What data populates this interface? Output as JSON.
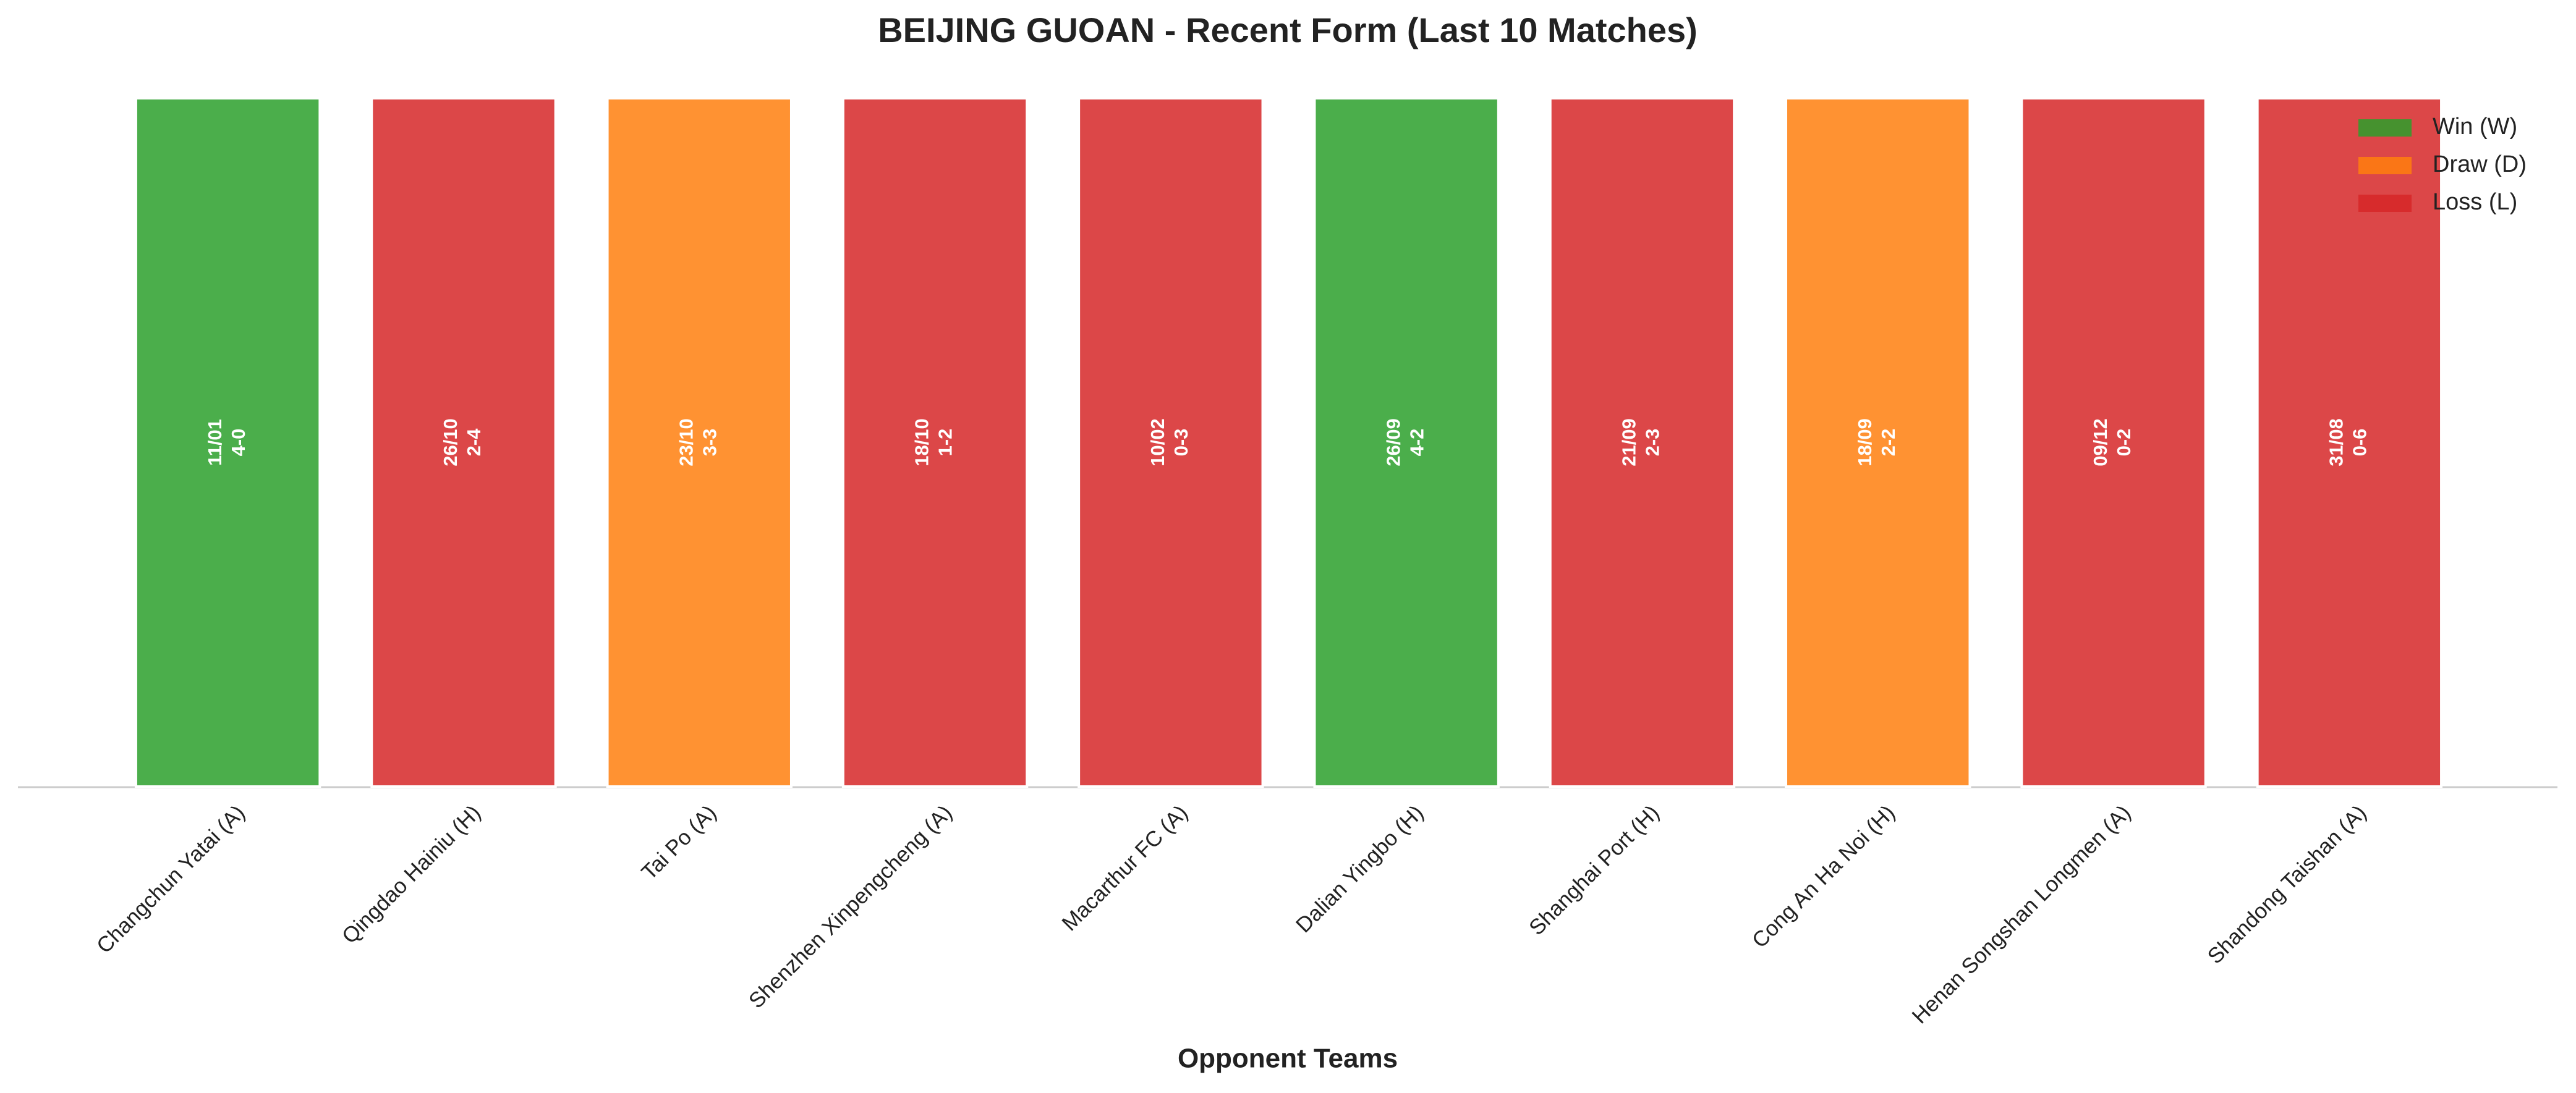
{
  "chart_data": {
    "type": "bar",
    "title": "BEIJING GUOAN - Recent Form (Last 10 Matches)",
    "x_label": "Opponent Teams",
    "categories": [
      "Changchun Yatai (A)",
      "Qingdao Hainiu (H)",
      "Tai Po (A)",
      "Shenzhen Xinpengcheng (A)",
      "Macarthur FC (A)",
      "Dalian Yingbo (H)",
      "Shanghai Port (H)",
      "Cong An Ha Noi (H)",
      "Henan Songshan Longmen (A)",
      "Shandong Taishan (A)"
    ],
    "dates": [
      "11/01",
      "26/10",
      "23/10",
      "18/10",
      "10/02",
      "26/09",
      "21/09",
      "18/09",
      "09/12",
      "31/08"
    ],
    "scores": [
      "4-0",
      "2-4",
      "3-3",
      "1-2",
      "0-3",
      "4-2",
      "2-3",
      "2-2",
      "0-2",
      "0-6"
    ],
    "series": [
      {
        "name": "Win (W)",
        "color": "#2ca02c",
        "values": [
          1,
          null,
          null,
          null,
          null,
          1,
          null,
          null,
          null,
          null
        ]
      },
      {
        "name": "Draw (D)",
        "color": "#ff7f0e",
        "values": [
          null,
          null,
          1,
          null,
          null,
          null,
          null,
          1,
          null,
          null
        ]
      },
      {
        "name": "Loss (L)",
        "color": "#d62728",
        "values": [
          null,
          1,
          null,
          1,
          1,
          null,
          1,
          null,
          1,
          1
        ]
      }
    ],
    "ylim": [
      0,
      1
    ],
    "legend": "upper right"
  }
}
